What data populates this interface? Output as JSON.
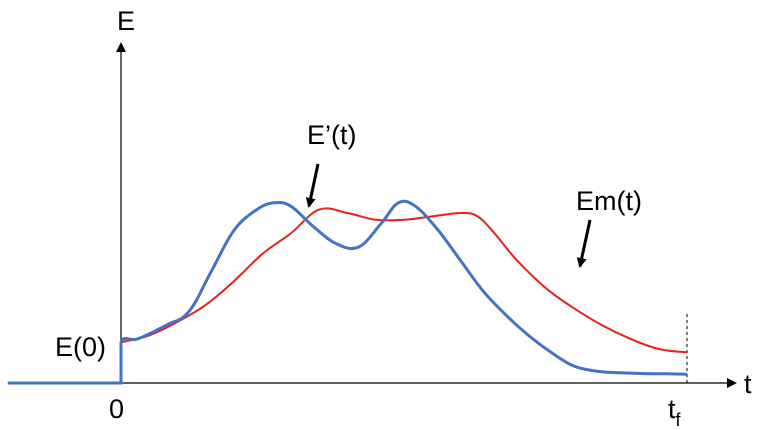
{
  "chart_data": {
    "type": "line",
    "title": "",
    "xlabel": "t",
    "ylabel": "E",
    "x_ticks": [
      {
        "text": "0",
        "sub": ""
      },
      {
        "text": "t",
        "sub": "f"
      }
    ],
    "y_ticks": [
      {
        "text": "E(0)"
      }
    ],
    "grid": false,
    "legend": "none",
    "annotations": [
      {
        "text": "E’(t)",
        "series": "E’(t)"
      },
      {
        "text": "Em(t)",
        "series": "Em(t)"
      }
    ],
    "xlim": [
      -0.2,
      1.1
    ],
    "ylim": [
      0,
      1.2
    ],
    "series": [
      {
        "name": "E’(t)",
        "color": "#4472C4",
        "x": [
          -0.2,
          0.0,
          0.0,
          0.03,
          0.08,
          0.12,
          0.16,
          0.2,
          0.24,
          0.27,
          0.3,
          0.34,
          0.38,
          0.42,
          0.46,
          0.49,
          0.52,
          0.56,
          0.6,
          0.64,
          0.68,
          0.72,
          0.76,
          0.8,
          0.84,
          0.88,
          0.92,
          0.96,
          1.0
        ],
        "y": [
          0.0,
          0.0,
          0.12,
          0.13,
          0.17,
          0.21,
          0.33,
          0.45,
          0.51,
          0.53,
          0.52,
          0.46,
          0.41,
          0.4,
          0.47,
          0.53,
          0.52,
          0.45,
          0.36,
          0.27,
          0.2,
          0.14,
          0.09,
          0.05,
          0.035,
          0.03,
          0.028,
          0.027,
          0.026
        ]
      },
      {
        "name": "Em(t)",
        "color": "#E62120",
        "x": [
          0.0,
          0.05,
          0.1,
          0.15,
          0.2,
          0.25,
          0.3,
          0.35,
          0.4,
          0.45,
          0.5,
          0.55,
          0.6,
          0.63,
          0.66,
          0.7,
          0.75,
          0.8,
          0.85,
          0.9,
          0.95,
          1.0
        ],
        "y": [
          0.12,
          0.14,
          0.18,
          0.23,
          0.3,
          0.38,
          0.44,
          0.51,
          0.5,
          0.48,
          0.48,
          0.49,
          0.5,
          0.49,
          0.44,
          0.36,
          0.28,
          0.22,
          0.17,
          0.13,
          0.1,
          0.09
        ]
      }
    ],
    "vertical_marker": {
      "at": 1.0,
      "style": "dashed",
      "label": "t_f"
    }
  }
}
